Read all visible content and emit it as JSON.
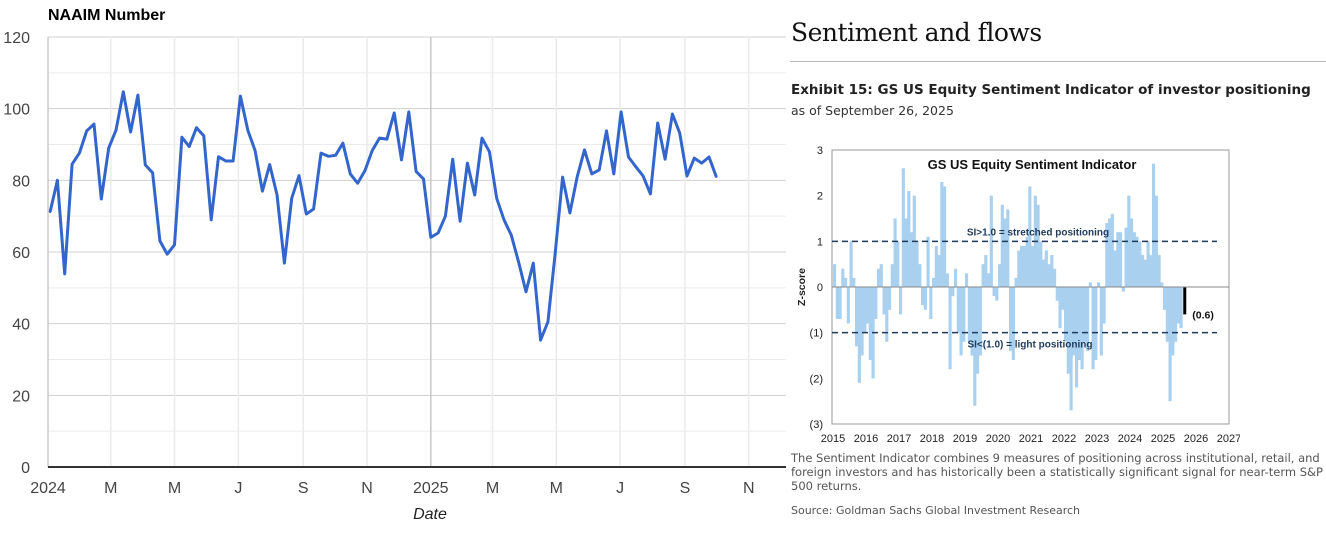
{
  "chart_data": [
    {
      "type": "line",
      "title": "NAAIM Number",
      "xlabel": "Date",
      "ylabel": "",
      "ylim": [
        0,
        120
      ],
      "yticks": [
        "0",
        "20",
        "40",
        "60",
        "80",
        "100",
        "120"
      ],
      "xticks": [
        "2024",
        "M",
        "M",
        "J",
        "S",
        "N",
        "2025",
        "M",
        "M",
        "J",
        "S",
        "N"
      ],
      "xlim": [
        "2024-01-01",
        "2025-12-15"
      ],
      "grid": true,
      "color": "#3366cc",
      "x": [
        "2024-01-03",
        "2024-01-10",
        "2024-01-17",
        "2024-01-24",
        "2024-01-31",
        "2024-02-07",
        "2024-02-14",
        "2024-02-21",
        "2024-02-28",
        "2024-03-06",
        "2024-03-13",
        "2024-03-20",
        "2024-03-27",
        "2024-04-03",
        "2024-04-10",
        "2024-04-17",
        "2024-04-24",
        "2024-05-01",
        "2024-05-08",
        "2024-05-15",
        "2024-05-22",
        "2024-05-29",
        "2024-06-05",
        "2024-06-12",
        "2024-06-19",
        "2024-06-26",
        "2024-07-03",
        "2024-07-10",
        "2024-07-17",
        "2024-07-24",
        "2024-07-31",
        "2024-08-07",
        "2024-08-14",
        "2024-08-21",
        "2024-08-28",
        "2024-09-04",
        "2024-09-11",
        "2024-09-18",
        "2024-09-25",
        "2024-10-02",
        "2024-10-09",
        "2024-10-16",
        "2024-10-23",
        "2024-10-30",
        "2024-11-06",
        "2024-11-13",
        "2024-11-20",
        "2024-11-27",
        "2024-12-04",
        "2024-12-11",
        "2024-12-18",
        "2024-12-25",
        "2025-01-01",
        "2025-01-08",
        "2025-01-15",
        "2025-01-22",
        "2025-01-29",
        "2025-02-05",
        "2025-02-12",
        "2025-02-19",
        "2025-02-26",
        "2025-03-05",
        "2025-03-12",
        "2025-03-19",
        "2025-03-26",
        "2025-04-02",
        "2025-04-09",
        "2025-04-16",
        "2025-04-23",
        "2025-04-30",
        "2025-05-07",
        "2025-05-14",
        "2025-05-21",
        "2025-05-28",
        "2025-06-04",
        "2025-06-11",
        "2025-06-18",
        "2025-06-25",
        "2025-07-02",
        "2025-07-09",
        "2025-07-16",
        "2025-07-23",
        "2025-07-30",
        "2025-08-06",
        "2025-08-13",
        "2025-08-20",
        "2025-08-27",
        "2025-09-03",
        "2025-09-10",
        "2025-09-17",
        "2025-09-24",
        "2025-10-01"
      ],
      "values": [
        71.2,
        80,
        53.9,
        84.5,
        87.6,
        93.8,
        95.7,
        74.8,
        89,
        94,
        104.7,
        93.5,
        103.8,
        84.3,
        82.1,
        63.1,
        59.4,
        62,
        92,
        89.4,
        94.7,
        92.4,
        69,
        86.6,
        85.4,
        85.4,
        103.5,
        94,
        88.3,
        77,
        84.4,
        76,
        56.9,
        75,
        81.3,
        70.6,
        72,
        87.6,
        86.7,
        87,
        90.4,
        81.8,
        79.2,
        82.7,
        88.3,
        91.8,
        91.5,
        98.8,
        85.7,
        99.1,
        82.5,
        80.4,
        64.1,
        65.3,
        70,
        85.9,
        68.6,
        84.8,
        75.9,
        91.8,
        88,
        75,
        69,
        64.7,
        57.2,
        48.9,
        56.9,
        35.4,
        40.5,
        59.7,
        80.9,
        70.9,
        81,
        88.5,
        81.8,
        82.9,
        93.8,
        81.8,
        99.1,
        86.5,
        83.8,
        81.2,
        76.2,
        96,
        85.9,
        98.5,
        93.2,
        81.2,
        86.2,
        84.8,
        86.5,
        81
      ]
    },
    {
      "type": "bar",
      "title": "GS US Equity  Sentiment Indicator",
      "xlabel": "",
      "ylabel": "Z-score",
      "ylim": [
        -3,
        3
      ],
      "yticks": [
        "(3)",
        "(2)",
        "(1)",
        "0",
        "1",
        "2",
        "3"
      ],
      "xticks": [
        "2015",
        "2016",
        "2017",
        "2018",
        "2019",
        "2020",
        "2021",
        "2022",
        "2023",
        "2024",
        "2025",
        "2026",
        "2027"
      ],
      "xlim": [
        2015,
        2027
      ],
      "bar_color": "#a9d0ef",
      "latest_color": "#000000",
      "threshold_color": "#1f3a5a",
      "thresholds": [
        {
          "value": 1,
          "label": "SI>1.0 = stretched positioning"
        },
        {
          "value": -1,
          "label": "SI<(1.0) = light positioning"
        }
      ],
      "latest_label": "(0.6)",
      "frequency": "monthly, starting 2015-01",
      "values": [
        0.5,
        -0.7,
        -0.7,
        0.4,
        0.2,
        -0.8,
        1.0,
        0.2,
        -1.3,
        -2.1,
        -1.5,
        -1.0,
        -0.8,
        -1.6,
        -2.0,
        -0.7,
        0.4,
        0.5,
        -0.6,
        -1.2,
        -0.5,
        0.5,
        1.5,
        1.0,
        -0.6,
        2.6,
        1.5,
        2.1,
        1.2,
        2.0,
        1.0,
        0.5,
        -0.4,
        -0.5,
        1.1,
        -0.7,
        0.2,
        0.9,
        0.7,
        2.3,
        2.2,
        0.3,
        -1.8,
        -0.2,
        0.4,
        -1.0,
        -1.5,
        -1.2,
        0.3,
        -1.2,
        -1.5,
        -2.6,
        -1.9,
        -1.5,
        0.5,
        0.7,
        0.3,
        2.0,
        -0.2,
        -0.3,
        0.5,
        1.8,
        1.5,
        1.7,
        -1.4,
        -1.6,
        0.2,
        0.8,
        0.9,
        0.9,
        1.1,
        2.2,
        0.9,
        2.0,
        1.8,
        1.0,
        0.6,
        0.8,
        0.5,
        0.7,
        0.4,
        -0.3,
        -0.9,
        -0.5,
        -1.2,
        -1.9,
        -2.7,
        -1.5,
        -2.2,
        -1.6,
        -1.8,
        -1.2,
        -1.4,
        0.1,
        -1.8,
        -1.6,
        0.1,
        -1.5,
        -0.8,
        1.4,
        1.5,
        1.6,
        0.8,
        1.2,
        1.2,
        -0.1,
        1.3,
        2.0,
        1.5,
        1.2,
        1.1,
        1.0,
        0.7,
        0.6,
        1.0,
        0.7,
        2.7,
        2.0,
        0.7,
        0.1,
        -0.5,
        -1.2,
        -2.5,
        -1.5,
        -1.2,
        -0.8,
        -0.9,
        -0.6
      ]
    }
  ],
  "article": {
    "section_title": "Sentiment and flows",
    "exhibit_title": "Exhibit 15: GS US Equity Sentiment Indicator of investor positioning",
    "as_of": "as of September 26, 2025",
    "caption": "The Sentiment Indicator combines 9 measures of positioning across institutional, retail, and foreign investors and has historically been a statistically significant signal for near-term S&P 500 returns.",
    "source": "Source: Goldman Sachs Global Investment Research"
  }
}
